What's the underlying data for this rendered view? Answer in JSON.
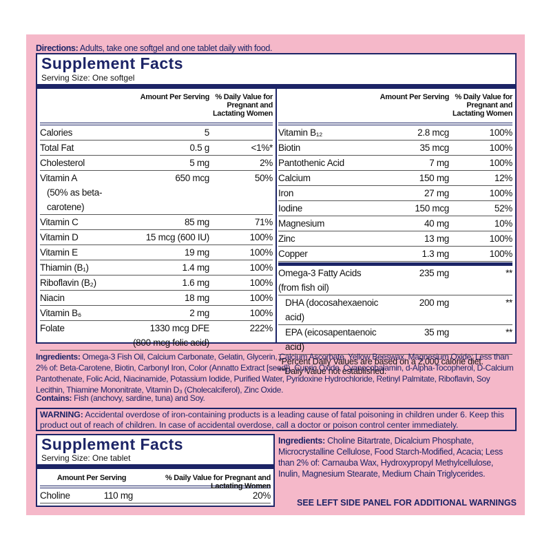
{
  "directions": {
    "label": "Directions:",
    "text": "Adults, take one softgel and one tablet daily with food."
  },
  "facts_softgel": {
    "title": "Supplement Facts",
    "serving": "Serving Size: One softgel",
    "header_amount": "Amount Per Serving",
    "header_dv": "% Daily Value for Pregnant and Lactating Women",
    "left_rows": [
      {
        "name": "Calories",
        "amount": "5"
      },
      {
        "name": "Total Fat",
        "amount": "0.5 g",
        "dv": "<1%*"
      },
      {
        "name": "Cholesterol",
        "amount": "5 mg",
        "dv": "2%"
      },
      {
        "name": "Vitamin A",
        "name_note": "(50% as beta-carotene)",
        "amount": "650 mcg",
        "dv": "50%"
      },
      {
        "name": "Vitamin C",
        "amount": "85 mg",
        "dv": "71%"
      },
      {
        "name": "Vitamin D",
        "amount": "15 mcg (600 IU)",
        "dv": "100%"
      },
      {
        "name": "Vitamin E",
        "amount": "19 mg",
        "dv": "100%"
      },
      {
        "name": "Thiamin (B₁)",
        "amount": "1.4 mg",
        "dv": "100%"
      },
      {
        "name": "Riboflavin (B₂)",
        "amount": "1.6 mg",
        "dv": "100%"
      },
      {
        "name": "Niacin",
        "amount": "18 mg",
        "dv": "100%"
      },
      {
        "name": "Vitamin B₆",
        "amount": "2 mg",
        "dv": "100%"
      },
      {
        "name": "Folate",
        "amount": "1330 mcg DFE",
        "amount_note": "(800 mcg folic acid)",
        "dv": "222%"
      }
    ],
    "right_rows": [
      {
        "name": "Vitamin B₁₂",
        "amount": "2.8 mcg",
        "dv": "100%"
      },
      {
        "name": "Biotin",
        "amount": "35 mcg",
        "dv": "100%"
      },
      {
        "name": "Pantothenic Acid",
        "amount": "7 mg",
        "dv": "100%"
      },
      {
        "name": "Calcium",
        "amount": "150 mg",
        "dv": "12%"
      },
      {
        "name": "Iron",
        "amount": "27 mg",
        "dv": "100%"
      },
      {
        "name": "Iodine",
        "amount": "150 mcg",
        "dv": "52%"
      },
      {
        "name": "Magnesium",
        "amount": "40 mg",
        "dv": "10%"
      },
      {
        "name": "Zinc",
        "amount": "13 mg",
        "dv": "100%"
      },
      {
        "name": "Copper",
        "amount": "1.3 mg",
        "dv": "100%"
      }
    ],
    "omega_rows": [
      {
        "name": "Omega-3 Fatty Acids (from fish oil)",
        "amount": "235 mg",
        "dv": "**"
      },
      {
        "name": "DHA (docosahexaenoic acid)",
        "amount": "200 mg",
        "dv": "**"
      },
      {
        "name": "EPA (eicosapentaenoic acid)",
        "amount": "35 mg",
        "dv": "**"
      }
    ],
    "footnotes": [
      "*Percent Daily Values are based on a 2,000 calorie diet.",
      "**Daily Value not established."
    ]
  },
  "ingredients_softgel": {
    "label": "Ingredients:",
    "text": "Omega-3 Fish Oil, Calcium Carbonate, Gelatin, Glycerin, Calcium Ascorbate, Yellow Beeswax, Magnesium Oxide; Less than 2% of: Beta-Carotene, Biotin, Carbonyl Iron, Color (Annatto Extract [seed]), Cupric Oxide, Cyanocobalamin, d-Alpha-Tocopherol, D-Calcium Pantothenate, Folic Acid, Niacinamide, Potassium Iodide, Purified Water, Pyridoxine Hydrochloride, Retinyl Palmitate, Riboflavin, Soy Lecithin, Thiamine Mononitrate, Vitamin D₃ (Cholecalciferol), Zinc Oxide."
  },
  "contains": {
    "label": "Contains:",
    "text": "Fish (anchovy, sardine, tuna) and Soy."
  },
  "warning": {
    "label": "WARNING:",
    "text": "Accidental overdose of iron-containing products is a leading cause of fatal poisoning in children under 6. Keep this product out of reach of children. In case of accidental overdose, call a doctor or poison control center immediately."
  },
  "facts_tablet": {
    "title": "Supplement Facts",
    "serving": "Serving Size: One tablet",
    "header_amount": "Amount Per Serving",
    "header_dv": "% Daily Value for Pregnant and Lactating Women",
    "rows": [
      {
        "name": "Choline",
        "amount": "110 mg",
        "dv": "20%"
      }
    ]
  },
  "ingredients_tablet": {
    "label": "Ingredients:",
    "text": "Choline Bitartrate, Dicalcium Phosphate, Microcrystalline Cellulose, Food Starch-Modified, Acacia; Less than 2% of: Carnauba Wax, Hydroxypropyl Methylcellulose, Inulin, Magnesium Stearate, Medium Chain Triglycerides."
  },
  "side_note": "SEE LEFT SIDE PANEL FOR ADDITIONAL WARNINGS"
}
